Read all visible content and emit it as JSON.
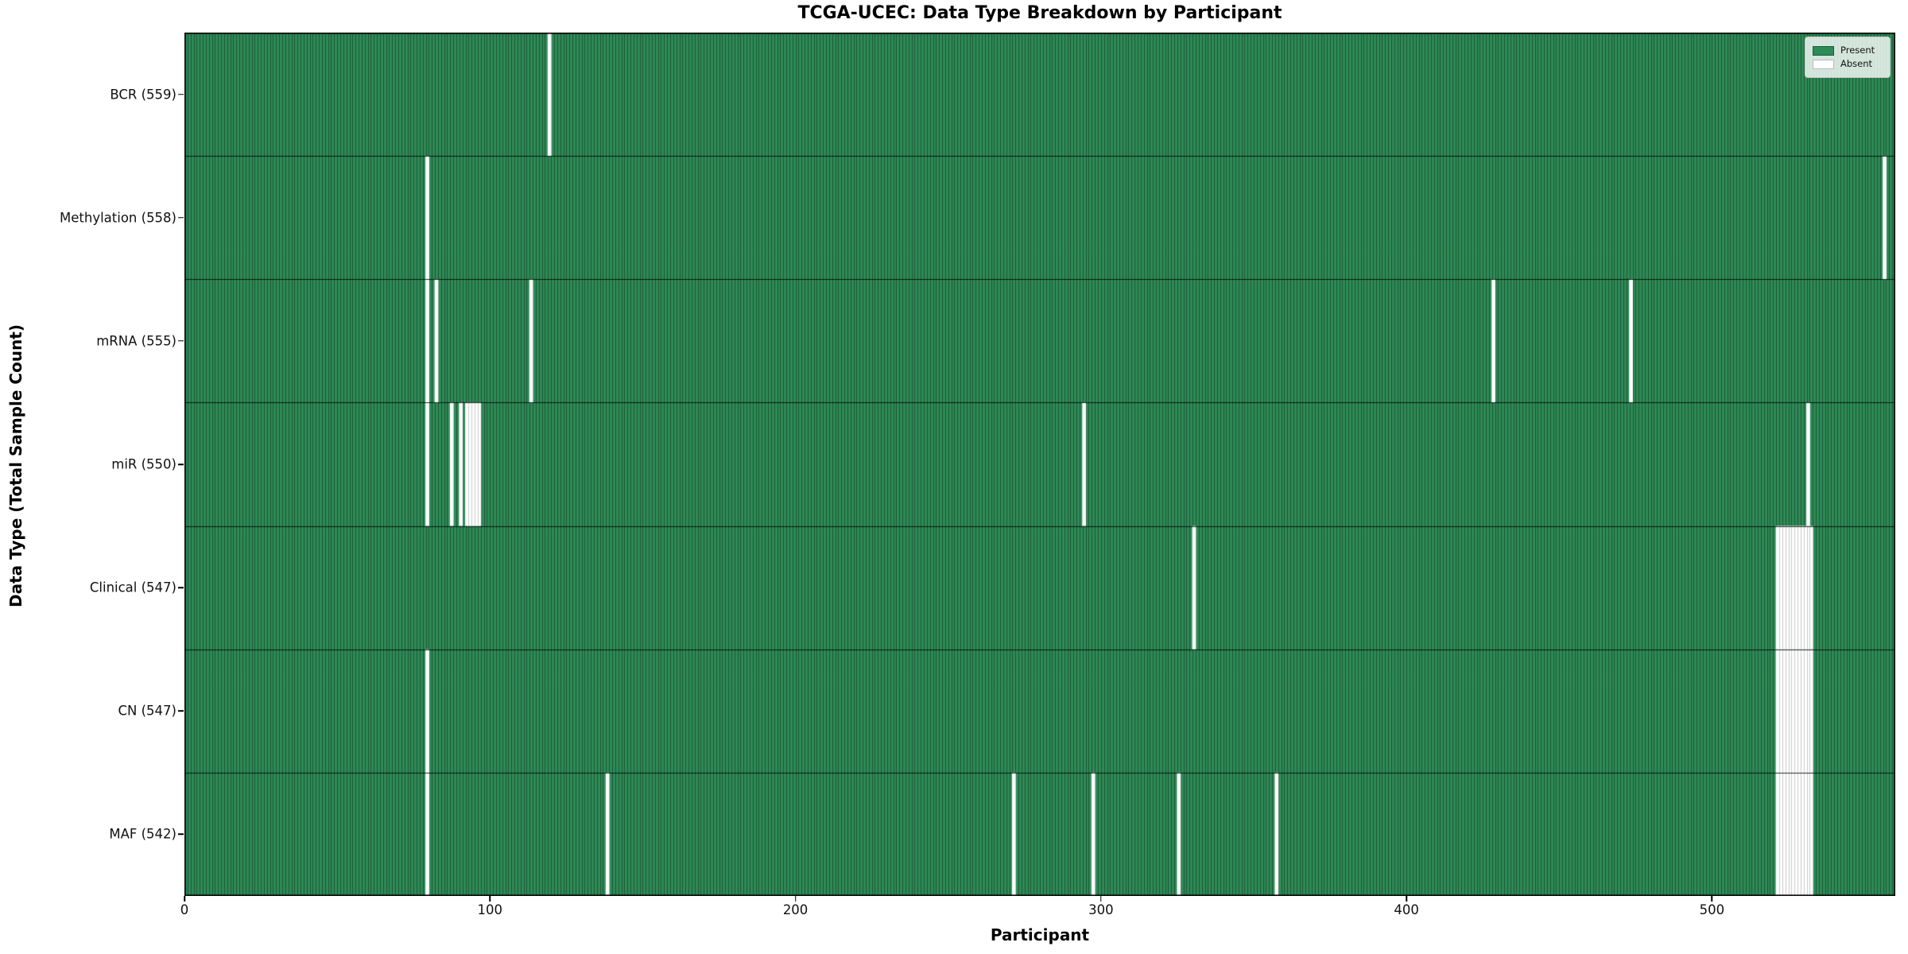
{
  "chart_data": {
    "type": "heatmap",
    "title": "TCGA-UCEC: Data Type Breakdown by Participant",
    "xlabel": "Participant",
    "ylabel": "Data Type (Total Sample Count)",
    "n_participants": 560,
    "x_ticks": [
      0,
      100,
      200,
      300,
      400,
      500
    ],
    "x_range": [
      0,
      560
    ],
    "grid": false,
    "legend_position": "upper right",
    "colors": {
      "present": "#2e8b57",
      "absent": "#ffffff"
    },
    "legend": [
      {
        "label": "Present",
        "color": "#2e8b57"
      },
      {
        "label": "Absent",
        "color": "#ffffff"
      }
    ],
    "rows": [
      {
        "label": "BCR (559)",
        "total": 559,
        "absent": [
          119
        ]
      },
      {
        "label": "Methylation (558)",
        "total": 558,
        "absent": [
          79,
          556
        ]
      },
      {
        "label": "mRNA (555)",
        "total": 555,
        "absent": [
          79,
          82,
          113,
          428,
          473
        ]
      },
      {
        "label": "miR (550)",
        "total": 550,
        "absent": [
          79,
          87,
          90,
          92,
          93,
          94,
          95,
          96,
          294,
          531
        ]
      },
      {
        "label": "Clinical (547)",
        "total": 547,
        "absent": [
          330,
          521,
          522,
          523,
          524,
          525,
          526,
          527,
          528,
          529,
          530,
          531,
          532
        ]
      },
      {
        "label": "CN (547)",
        "total": 547,
        "absent": [
          79,
          521,
          522,
          523,
          524,
          525,
          526,
          527,
          528,
          529,
          530,
          531,
          532
        ]
      },
      {
        "label": "MAF (542)",
        "total": 542,
        "absent": [
          79,
          138,
          271,
          297,
          325,
          357,
          521,
          522,
          523,
          524,
          525,
          526,
          527,
          528,
          529,
          530,
          531,
          532
        ]
      }
    ]
  }
}
